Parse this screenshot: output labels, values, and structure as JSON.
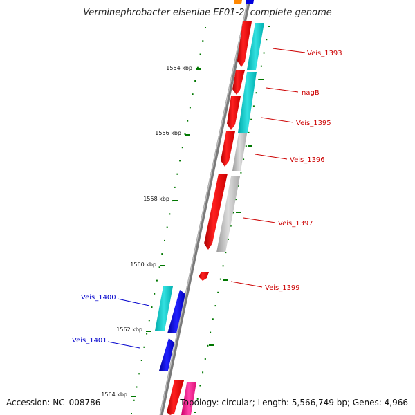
{
  "title": "Verminephrobacter eiseniae EF01-2, complete genome",
  "footer": {
    "accession": "Accession: NC_008786",
    "topology": "Topology: circular; Length: 5,566,749 bp; Genes: 4,966"
  },
  "ticks": [
    "1554 kbp",
    "1556 kbp",
    "1558 kbp",
    "1560 kbp",
    "1562 kbp",
    "1564 kbp"
  ],
  "genes_right": [
    "Veis_1393",
    "nagB",
    "Veis_1395",
    "Veis_1396",
    "Veis_1397",
    "Veis_1399"
  ],
  "genes_left": [
    "Veis_1400",
    "Veis_1401"
  ],
  "colors": {
    "forward_gene": "#ee0000",
    "reverse_gene": "#0000dd",
    "cds_cyan": "#00cccc",
    "cds_gray": "#bbbbbb",
    "pink": "#ee1188",
    "orange": "#ff8800",
    "tick_green": "#007700",
    "backbone": "#888888"
  }
}
